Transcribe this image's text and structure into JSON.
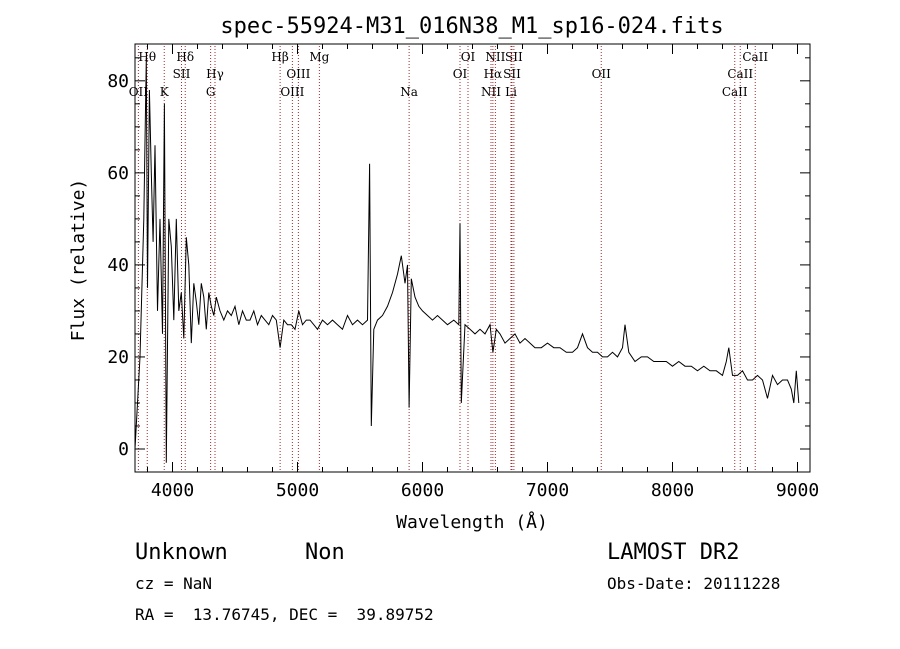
{
  "chart_data": {
    "type": "line",
    "title": "spec-55924-M31_016N38_M1_sp16-024.fits",
    "xlabel": "Wavelength (Å)",
    "ylabel": "Flux (relative)",
    "xlim": [
      3700,
      9100
    ],
    "ylim": [
      -5,
      88
    ],
    "x_ticks": [
      4000,
      5000,
      6000,
      7000,
      8000,
      9000
    ],
    "y_ticks": [
      0,
      20,
      40,
      60,
      80
    ],
    "series": [
      {
        "name": "flux",
        "x": [
          3700,
          3740,
          3770,
          3790,
          3800,
          3815,
          3830,
          3845,
          3860,
          3880,
          3900,
          3920,
          3935,
          3950,
          3970,
          3990,
          4010,
          4030,
          4050,
          4070,
          4090,
          4110,
          4130,
          4150,
          4170,
          4190,
          4210,
          4230,
          4250,
          4270,
          4290,
          4310,
          4330,
          4350,
          4380,
          4410,
          4440,
          4470,
          4500,
          4530,
          4560,
          4590,
          4620,
          4650,
          4680,
          4710,
          4740,
          4770,
          4800,
          4830,
          4861,
          4890,
          4920,
          4950,
          4980,
          5010,
          5040,
          5070,
          5100,
          5130,
          5160,
          5200,
          5240,
          5280,
          5320,
          5360,
          5400,
          5440,
          5480,
          5520,
          5560,
          5577,
          5590,
          5610,
          5640,
          5680,
          5720,
          5760,
          5800,
          5830,
          5860,
          5880,
          5893,
          5910,
          5940,
          5970,
          6000,
          6040,
          6080,
          6120,
          6160,
          6200,
          6250,
          6290,
          6300,
          6310,
          6340,
          6380,
          6420,
          6460,
          6500,
          6540,
          6563,
          6590,
          6620,
          6660,
          6700,
          6740,
          6780,
          6820,
          6860,
          6900,
          6950,
          7000,
          7050,
          7100,
          7150,
          7200,
          7240,
          7280,
          7320,
          7360,
          7400,
          7440,
          7480,
          7520,
          7560,
          7600,
          7620,
          7650,
          7700,
          7750,
          7800,
          7850,
          7900,
          7950,
          8000,
          8050,
          8100,
          8150,
          8200,
          8250,
          8300,
          8350,
          8400,
          8430,
          8450,
          8480,
          8520,
          8560,
          8600,
          8640,
          8680,
          8720,
          8760,
          8800,
          8840,
          8880,
          8920,
          8950,
          8970,
          8990,
          9010
        ],
        "values": [
          0,
          20,
          50,
          85,
          35,
          78,
          60,
          45,
          66,
          30,
          50,
          25,
          75,
          -3,
          50,
          44,
          28,
          50,
          30,
          34,
          24,
          46,
          40,
          23,
          36,
          32,
          27,
          36,
          33,
          26,
          34,
          31,
          29,
          33,
          30,
          28,
          30,
          29,
          31,
          27,
          30,
          28,
          28,
          30,
          27,
          29,
          28,
          27,
          29,
          28,
          22,
          28,
          27,
          27,
          26,
          30,
          27,
          28,
          28,
          27,
          26,
          28,
          27,
          28,
          27,
          26,
          29,
          27,
          28,
          27,
          28,
          62,
          5,
          26,
          28,
          29,
          31,
          34,
          38,
          42,
          36,
          40,
          9,
          37,
          33,
          31,
          30,
          29,
          28,
          29,
          28,
          27,
          28,
          27,
          49,
          10,
          27,
          26,
          25,
          26,
          25,
          27,
          21,
          26,
          25,
          23,
          24,
          25,
          23,
          24,
          23,
          22,
          22,
          23,
          22,
          22,
          21,
          21,
          22,
          25,
          22,
          21,
          21,
          20,
          20,
          21,
          20,
          22,
          27,
          21,
          19,
          20,
          20,
          19,
          19,
          19,
          18,
          19,
          18,
          18,
          17,
          18,
          17,
          17,
          16,
          19,
          22,
          16,
          16,
          17,
          15,
          15,
          16,
          15,
          11,
          16,
          14,
          15,
          15,
          13,
          10,
          17,
          10
        ]
      }
    ],
    "line_markers": [
      {
        "label": "Hθ",
        "x": 3798,
        "row": 1
      },
      {
        "label": "OII",
        "x": 3727,
        "row": 3
      },
      {
        "label": "K",
        "x": 3934,
        "row": 3
      },
      {
        "label": "Hδ",
        "x": 4102,
        "row": 1
      },
      {
        "label": "SII",
        "x": 4072,
        "row": 2
      },
      {
        "label": "Hγ",
        "x": 4340,
        "row": 2
      },
      {
        "label": "G",
        "x": 4305,
        "row": 3
      },
      {
        "label": "Hβ",
        "x": 4861,
        "row": 1
      },
      {
        "label": "OIII",
        "x": 5007,
        "row": 2
      },
      {
        "label": "OIII",
        "x": 4959,
        "row": 3
      },
      {
        "label": "Mg",
        "x": 5175,
        "row": 1
      },
      {
        "label": "Na",
        "x": 5893,
        "row": 3
      },
      {
        "label": "OI",
        "x": 6364,
        "row": 1
      },
      {
        "label": "OI",
        "x": 6300,
        "row": 2
      },
      {
        "label": "NII",
        "x": 6583,
        "row": 1
      },
      {
        "label": "SII",
        "x": 6731,
        "row": 1
      },
      {
        "label": "Hα",
        "x": 6563,
        "row": 2
      },
      {
        "label": "SII",
        "x": 6716,
        "row": 2
      },
      {
        "label": "NII",
        "x": 6548,
        "row": 3
      },
      {
        "label": "Li",
        "x": 6708,
        "row": 3
      },
      {
        "label": "OII",
        "x": 7430,
        "row": 2
      },
      {
        "label": "CaII",
        "x": 8662,
        "row": 1
      },
      {
        "label": "CaII",
        "x": 8542,
        "row": 2
      },
      {
        "label": "CaII",
        "x": 8498,
        "row": 3
      }
    ],
    "marker_color": "#a52a2a"
  },
  "info": {
    "object_class": "Unknown",
    "object_subclass": "Non",
    "redshift": "cz = NaN",
    "coords": "RA =  13.76745, DEC =  39.89752",
    "survey": "LAMOST DR2",
    "obs_date": "Obs-Date: 20111228"
  }
}
